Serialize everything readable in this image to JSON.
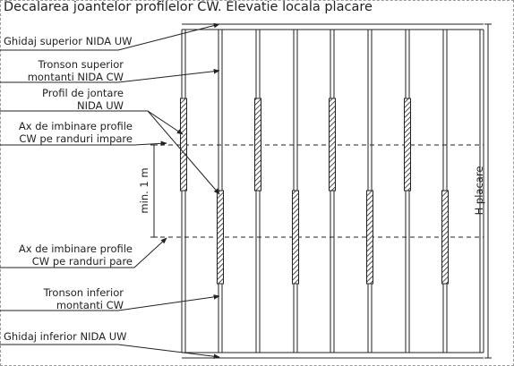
{
  "title": "Decalarea joantelor profilelor CW. Elevatie locala placare",
  "labels": {
    "ghidaj_superior": "Ghidaj superior NIDA UW",
    "tronson_superior_1": "Tronson superior",
    "tronson_superior_2": "montanti NIDA CW",
    "profil_jontare_1": "Profil de jontare",
    "profil_jontare_2": "NIDA UW",
    "ax_impare_1": "Ax de imbinare profile",
    "ax_impare_2": "CW pe randuri impare",
    "min_1m": "min. 1 m",
    "ax_pare_1": "Ax de imbinare profile",
    "ax_pare_2": "CW pe randuri pare",
    "tronson_inferior_1": "Tronson inferior",
    "tronson_inferior_2": "montanti CW",
    "ghidaj_inferior": "Ghidaj inferior NIDA UW",
    "h_placare": "H placare"
  }
}
